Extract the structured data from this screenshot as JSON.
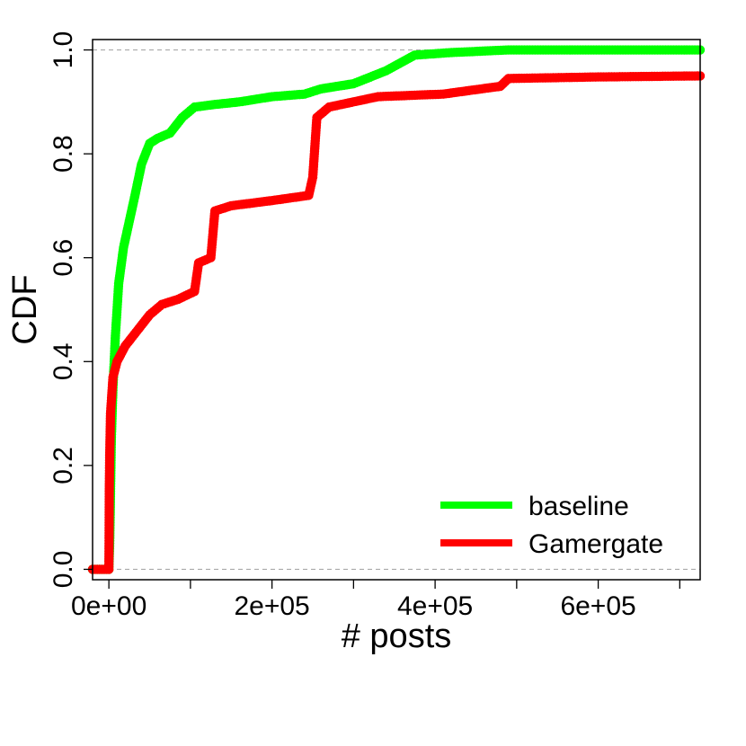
{
  "chart_data": {
    "type": "line",
    "title": "",
    "xlabel": "# posts",
    "ylabel": "CDF",
    "xlim": [
      -20000,
      725000
    ],
    "ylim": [
      -0.02,
      1.02
    ],
    "x_ticks": [
      0,
      100000,
      200000,
      300000,
      400000,
      500000,
      600000,
      700000
    ],
    "x_tick_labels": [
      {
        "value": 0,
        "label": "0e+00"
      },
      {
        "value": 200000,
        "label": "2e+05"
      },
      {
        "value": 400000,
        "label": "4e+05"
      },
      {
        "value": 600000,
        "label": "6e+05"
      }
    ],
    "y_ticks": [
      {
        "value": 0.0,
        "label": "0.0"
      },
      {
        "value": 0.2,
        "label": "0.2"
      },
      {
        "value": 0.4,
        "label": "0.4"
      },
      {
        "value": 0.6,
        "label": "0.6"
      },
      {
        "value": 0.8,
        "label": "0.8"
      },
      {
        "value": 1.0,
        "label": "1.0"
      }
    ],
    "reference_lines": [
      0.0,
      1.0
    ],
    "legend_position": "bottom-right",
    "series": [
      {
        "name": "baseline",
        "color": "#00ff00",
        "points": [
          [
            -20000,
            0.0
          ],
          [
            0,
            0.0
          ],
          [
            1000,
            0.05
          ],
          [
            2000,
            0.15
          ],
          [
            3000,
            0.25
          ],
          [
            5000,
            0.35
          ],
          [
            8000,
            0.45
          ],
          [
            12000,
            0.55
          ],
          [
            18000,
            0.62
          ],
          [
            25000,
            0.67
          ],
          [
            32000,
            0.72
          ],
          [
            40000,
            0.78
          ],
          [
            50000,
            0.82
          ],
          [
            60000,
            0.83
          ],
          [
            75000,
            0.84
          ],
          [
            90000,
            0.87
          ],
          [
            105000,
            0.89
          ],
          [
            130000,
            0.895
          ],
          [
            160000,
            0.9
          ],
          [
            200000,
            0.91
          ],
          [
            240000,
            0.915
          ],
          [
            260000,
            0.925
          ],
          [
            300000,
            0.935
          ],
          [
            340000,
            0.96
          ],
          [
            375000,
            0.99
          ],
          [
            420000,
            0.995
          ],
          [
            490000,
            1.0
          ],
          [
            725000,
            1.0
          ]
        ]
      },
      {
        "name": "Gamergate",
        "color": "#ff0000",
        "points": [
          [
            -20000,
            0.0
          ],
          [
            0,
            0.0
          ],
          [
            200,
            0.05
          ],
          [
            500,
            0.15
          ],
          [
            1000,
            0.22
          ],
          [
            2000,
            0.3
          ],
          [
            5000,
            0.37
          ],
          [
            10000,
            0.4
          ],
          [
            20000,
            0.43
          ],
          [
            35000,
            0.46
          ],
          [
            50000,
            0.49
          ],
          [
            65000,
            0.51
          ],
          [
            85000,
            0.52
          ],
          [
            105000,
            0.535
          ],
          [
            110000,
            0.59
          ],
          [
            125000,
            0.6
          ],
          [
            130000,
            0.69
          ],
          [
            150000,
            0.7
          ],
          [
            200000,
            0.71
          ],
          [
            245000,
            0.72
          ],
          [
            250000,
            0.755
          ],
          [
            255000,
            0.87
          ],
          [
            270000,
            0.89
          ],
          [
            300000,
            0.9
          ],
          [
            330000,
            0.91
          ],
          [
            410000,
            0.915
          ],
          [
            480000,
            0.93
          ],
          [
            490000,
            0.945
          ],
          [
            600000,
            0.948
          ],
          [
            725000,
            0.95
          ]
        ]
      }
    ]
  }
}
